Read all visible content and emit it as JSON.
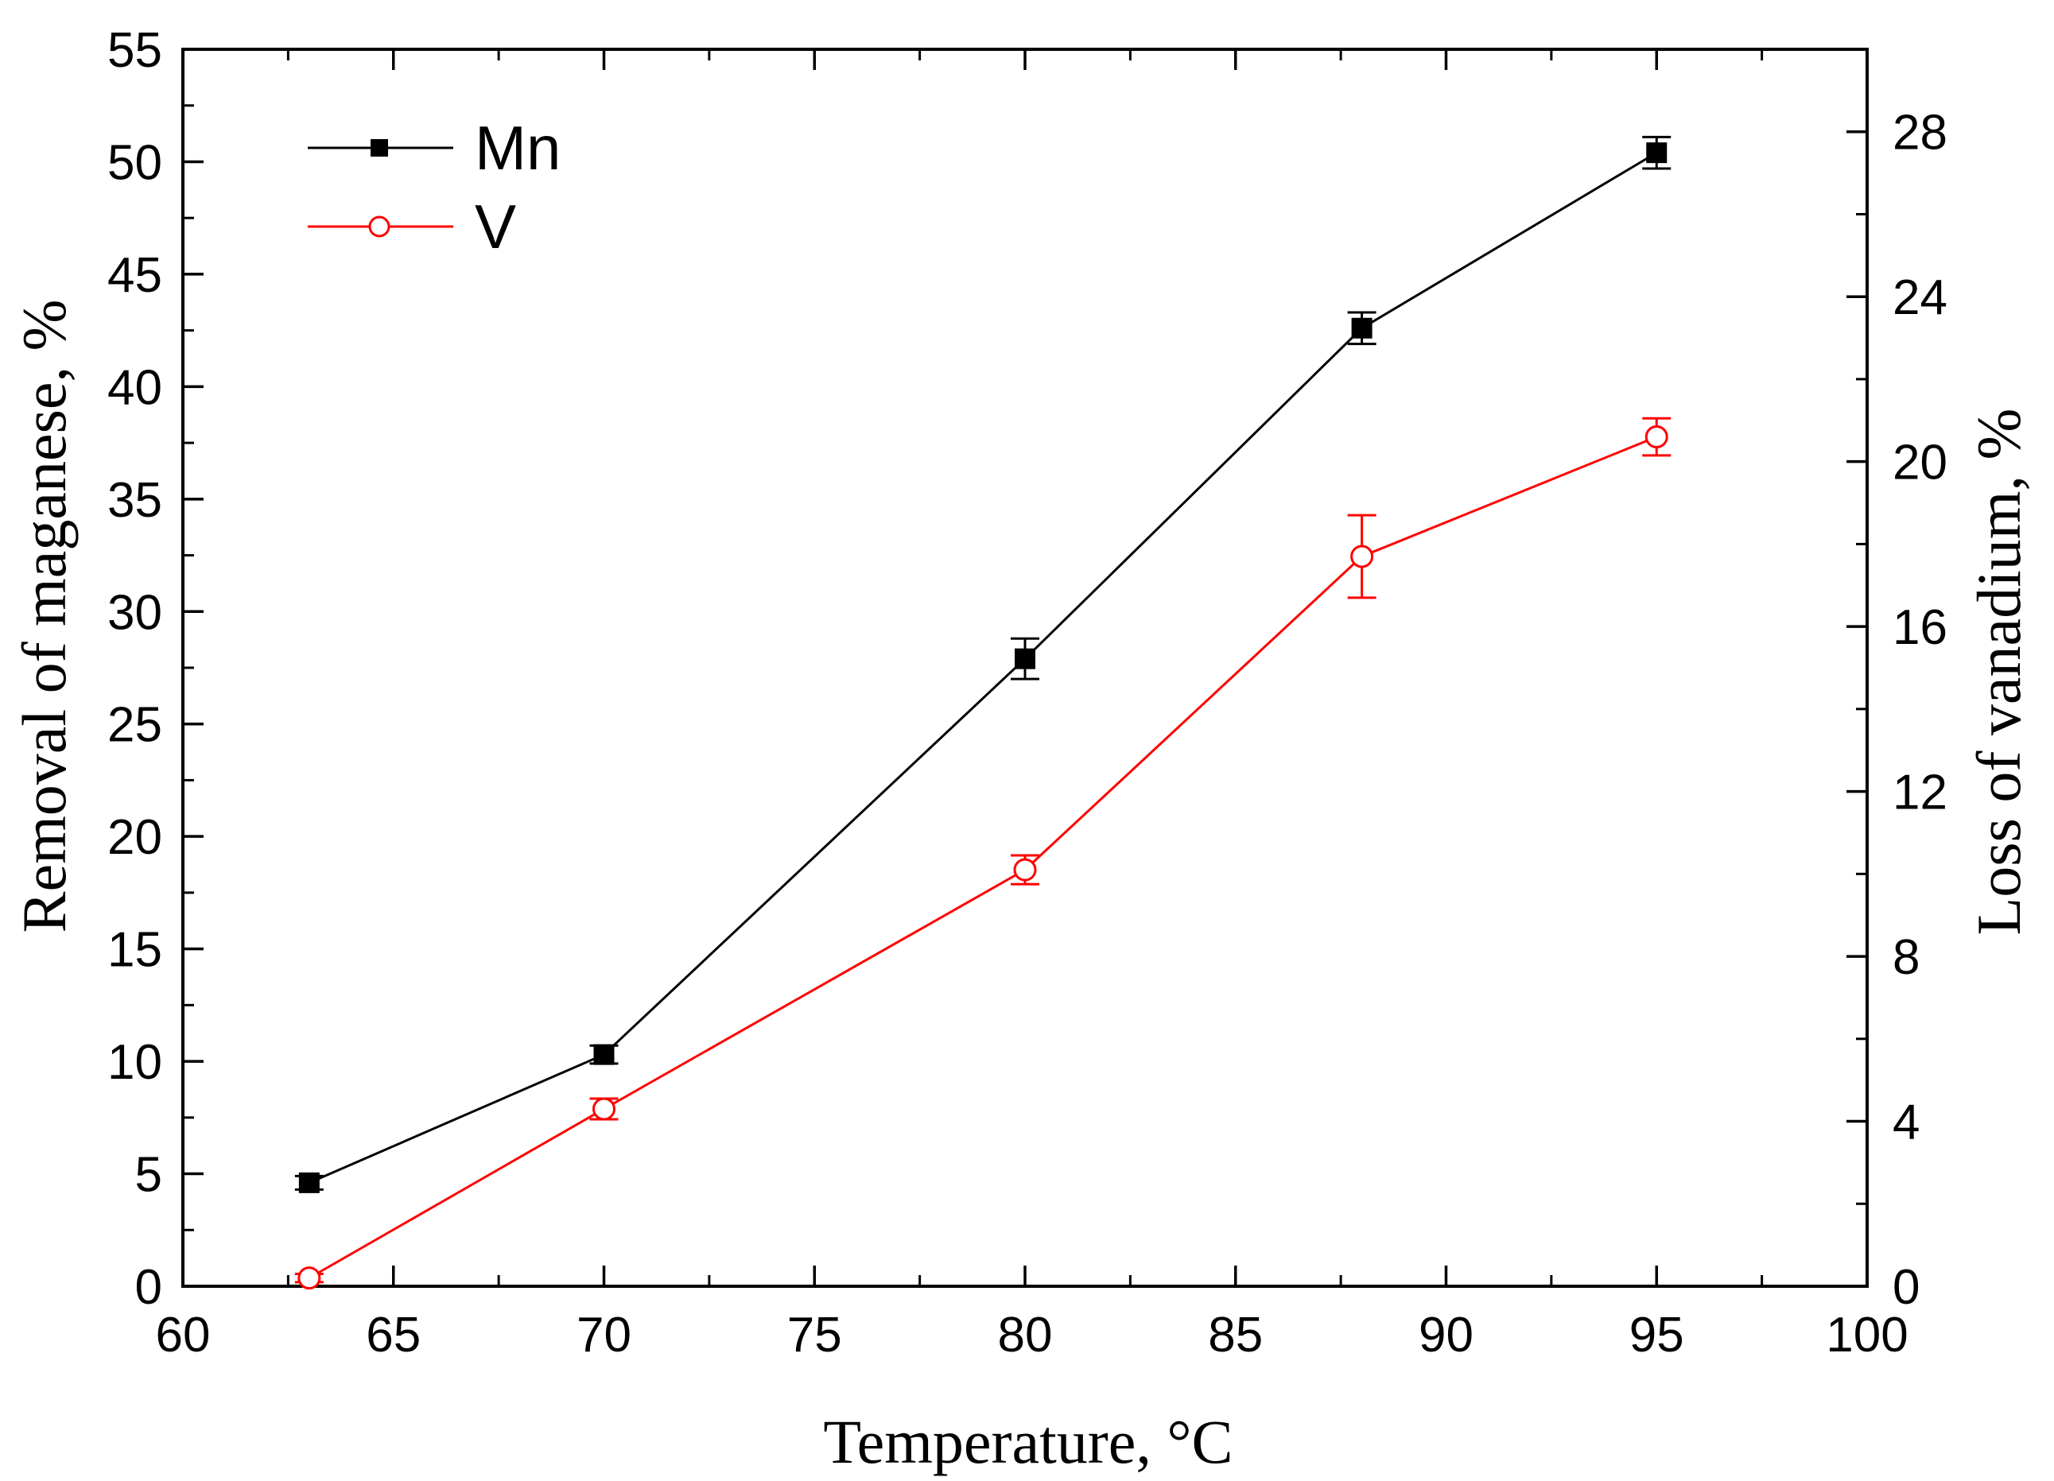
{
  "chart_data": {
    "type": "line",
    "title": "",
    "xlabel": "Temperature, °C",
    "ylabel": "Removal of maganese, %",
    "y2label": "Loss of vanadium, %",
    "xlim": [
      60,
      100
    ],
    "ylim": [
      0,
      55
    ],
    "y2lim": [
      0,
      30
    ],
    "xticks": [
      60,
      65,
      70,
      75,
      80,
      85,
      90,
      95,
      100
    ],
    "yticks": [
      0,
      5,
      10,
      15,
      20,
      25,
      30,
      35,
      40,
      45,
      50,
      55
    ],
    "y2ticks": [
      0,
      4,
      8,
      12,
      16,
      20,
      24,
      28
    ],
    "grid": false,
    "legend": "top-left",
    "series": [
      {
        "name": "Mn",
        "axis": "left",
        "color": "#000000",
        "marker": "filled-square",
        "x": [
          63,
          70,
          80,
          88,
          95
        ],
        "y": [
          4.6,
          10.3,
          27.9,
          42.6,
          50.4
        ],
        "err": [
          0.3,
          0.4,
          0.9,
          0.7,
          0.7
        ]
      },
      {
        "name": "V",
        "axis": "right",
        "color": "#ff0000",
        "marker": "open-circle",
        "x": [
          63,
          70,
          80,
          88,
          95
        ],
        "y": [
          0.2,
          4.3,
          10.1,
          17.7,
          20.6
        ],
        "err": [
          0.1,
          0.25,
          0.35,
          1.0,
          0.45
        ]
      }
    ]
  }
}
